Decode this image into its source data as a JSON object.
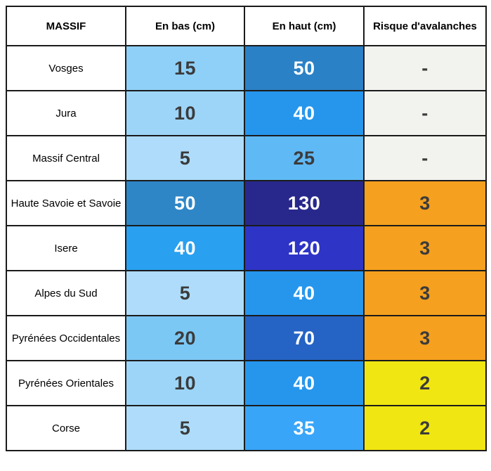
{
  "accent_colors": {
    "light_blue_5": "#AEDCFA",
    "light_blue_10": "#9DD5F8",
    "light_blue_15": "#8FD0F8",
    "blue_20": "#7CC8F5",
    "blue_25": "#5FB9F5",
    "blue_35": "#38A5F8",
    "blue_40": "#2696EC",
    "steel_blue_50": "#2C84C6",
    "royal_blue_70": "#2563C4",
    "royal_blue_120": "#2E34C6",
    "navy_130": "#28288C",
    "risk_3_orange": "#F5A01E",
    "risk_2_yellow": "#F0E611",
    "risk_none_gray": "#F2F2EF",
    "dark_text": "#3B3B3B",
    "white_text": "#FFFFFF"
  },
  "chart_data": {
    "type": "table",
    "title": "",
    "columns": [
      "MASSIF",
      "En bas (cm)",
      "En haut (cm)",
      "Risque d'avalanches"
    ],
    "rows": [
      [
        "Vosges",
        15,
        50,
        "-"
      ],
      [
        "Jura",
        10,
        40,
        "-"
      ],
      [
        "Massif Central",
        5,
        25,
        "-"
      ],
      [
        "Haute Savoie et Savoie",
        50,
        130,
        3
      ],
      [
        "Isere",
        40,
        120,
        3
      ],
      [
        "Alpes du Sud",
        5,
        40,
        3
      ],
      [
        "Pyrénées Occidentales",
        20,
        70,
        3
      ],
      [
        "Pyrénées Orientales",
        10,
        40,
        2
      ],
      [
        "Corse",
        5,
        35,
        2
      ]
    ]
  },
  "table": {
    "headers": {
      "massif": "MASSIF",
      "en_bas": "En bas (cm)",
      "en_haut": "En haut (cm)",
      "risque": "Risque d'avalanches"
    },
    "rows": [
      {
        "massif": "Vosges",
        "en_bas": "15",
        "en_bas_bg": "#8FD0F8",
        "en_bas_fg": "#3B3B3B",
        "en_haut": "50",
        "en_haut_bg": "#2B81C6",
        "en_haut_fg": "#FFFFFF",
        "risque": "-",
        "risque_bg": "#F2F2EF",
        "risque_fg": "#3B3B3B"
      },
      {
        "massif": "Jura",
        "en_bas": "10",
        "en_bas_bg": "#9DD5F8",
        "en_bas_fg": "#3B3B3B",
        "en_haut": "40",
        "en_haut_bg": "#2696EC",
        "en_haut_fg": "#FFFFFF",
        "risque": "-",
        "risque_bg": "#F2F2EF",
        "risque_fg": "#3B3B3B"
      },
      {
        "massif": "Massif Central",
        "en_bas": "5",
        "en_bas_bg": "#AEDCFA",
        "en_bas_fg": "#3B3B3B",
        "en_haut": "25",
        "en_haut_bg": "#5FB9F5",
        "en_haut_fg": "#3B3B3B",
        "risque": "-",
        "risque_bg": "#F2F2EF",
        "risque_fg": "#3B3B3B"
      },
      {
        "massif": "Haute Savoie et Savoie",
        "en_bas": "50",
        "en_bas_bg": "#2E86C6",
        "en_bas_fg": "#FFFFFF",
        "en_haut": "130",
        "en_haut_bg": "#28288C",
        "en_haut_fg": "#FFFFFF",
        "risque": "3",
        "risque_bg": "#F5A01E",
        "risque_fg": "#3B3B3B"
      },
      {
        "massif": "Isere",
        "en_bas": "40",
        "en_bas_bg": "#29A0F0",
        "en_bas_fg": "#FFFFFF",
        "en_haut": "120",
        "en_haut_bg": "#2E34C6",
        "en_haut_fg": "#FFFFFF",
        "risque": "3",
        "risque_bg": "#F5A01E",
        "risque_fg": "#3B3B3B"
      },
      {
        "massif": "Alpes du Sud",
        "en_bas": "5",
        "en_bas_bg": "#AEDCFA",
        "en_bas_fg": "#3B3B3B",
        "en_haut": "40",
        "en_haut_bg": "#2696EC",
        "en_haut_fg": "#FFFFFF",
        "risque": "3",
        "risque_bg": "#F5A01E",
        "risque_fg": "#3B3B3B"
      },
      {
        "massif": "Pyrénées Occidentales",
        "en_bas": "20",
        "en_bas_bg": "#7CC8F5",
        "en_bas_fg": "#3B3B3B",
        "en_haut": "70",
        "en_haut_bg": "#2563C4",
        "en_haut_fg": "#FFFFFF",
        "risque": "3",
        "risque_bg": "#F5A01E",
        "risque_fg": "#3B3B3B"
      },
      {
        "massif": "Pyrénées Orientales",
        "en_bas": "10",
        "en_bas_bg": "#9DD5F8",
        "en_bas_fg": "#3B3B3B",
        "en_haut": "40",
        "en_haut_bg": "#2696EC",
        "en_haut_fg": "#FFFFFF",
        "risque": "2",
        "risque_bg": "#F0E611",
        "risque_fg": "#3B3B3B"
      },
      {
        "massif": "Corse",
        "en_bas": "5",
        "en_bas_bg": "#AEDCFA",
        "en_bas_fg": "#3B3B3B",
        "en_haut": "35",
        "en_haut_bg": "#38A5F8",
        "en_haut_fg": "#FFFFFF",
        "risque": "2",
        "risque_bg": "#F0E611",
        "risque_fg": "#3B3B3B"
      }
    ]
  }
}
